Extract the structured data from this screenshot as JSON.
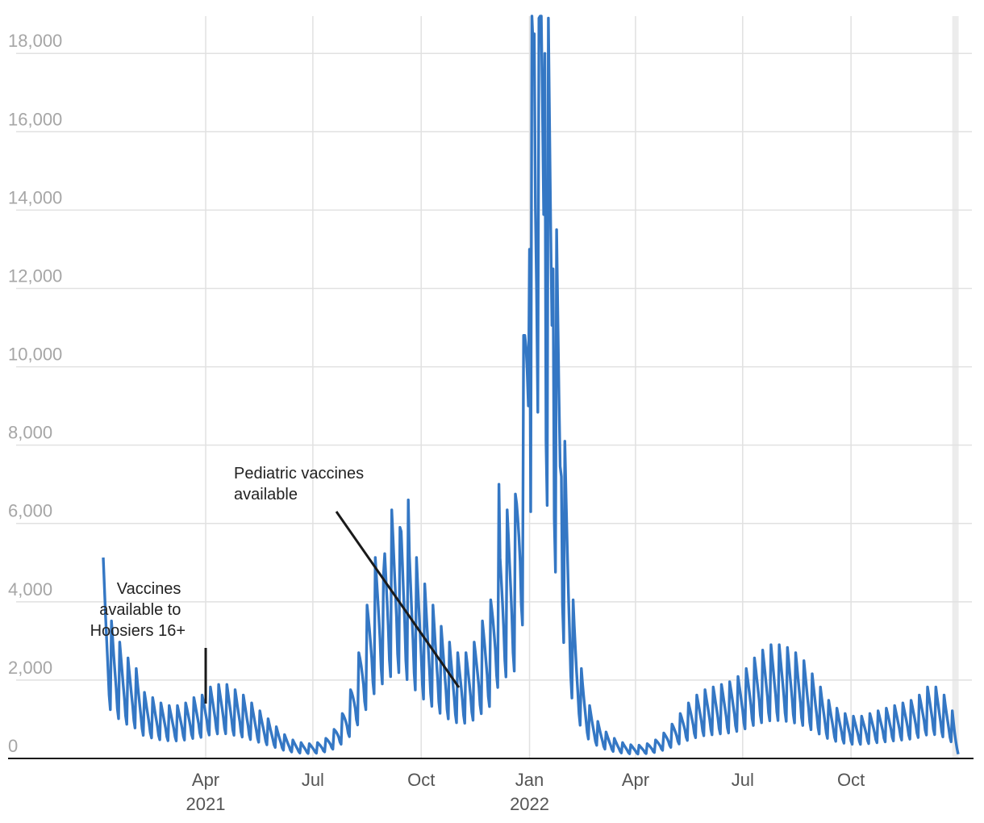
{
  "chart_data": {
    "type": "line",
    "title": "",
    "xlabel": "",
    "ylabel": "",
    "x_range": [
      "2021-01-04",
      "2022-12-31"
    ],
    "ylim": [
      0,
      18500
    ],
    "y_ticks": [
      0,
      2000,
      4000,
      6000,
      8000,
      10000,
      12000,
      14000,
      16000,
      18000
    ],
    "y_tick_labels": [
      "0",
      "2,000",
      "4,000",
      "6,000",
      "8,000",
      "10,000",
      "12,000",
      "14,000",
      "16,000",
      "18,000"
    ],
    "x_ticks": [
      {
        "date": "2021-04-01",
        "label": "Apr",
        "year": "2021"
      },
      {
        "date": "2021-07-01",
        "label": "Jul",
        "year": ""
      },
      {
        "date": "2021-10-01",
        "label": "Oct",
        "year": ""
      },
      {
        "date": "2022-01-01",
        "label": "Jan",
        "year": "2022"
      },
      {
        "date": "2022-04-01",
        "label": "Apr",
        "year": ""
      },
      {
        "date": "2022-07-01",
        "label": "Jul",
        "year": ""
      },
      {
        "date": "2022-10-01",
        "label": "Oct",
        "year": ""
      }
    ],
    "grid": true,
    "highlight_band_date": "2022-12-28",
    "series_color": "#3477c4",
    "series": [
      {
        "points": [
          [
            "2021-01-04",
            3800
          ],
          [
            "2021-01-11",
            2600
          ],
          [
            "2021-01-18",
            2200
          ],
          [
            "2021-01-25",
            1900
          ],
          [
            "2021-02-01",
            1700
          ],
          [
            "2021-02-08",
            1250
          ],
          [
            "2021-02-15",
            1150
          ],
          [
            "2021-02-22",
            1050
          ],
          [
            "2021-03-01",
            1000
          ],
          [
            "2021-03-08",
            1000
          ],
          [
            "2021-03-15",
            1050
          ],
          [
            "2021-03-22",
            1150
          ],
          [
            "2021-03-29",
            1200
          ],
          [
            "2021-04-05",
            1350
          ],
          [
            "2021-04-12",
            1400
          ],
          [
            "2021-04-19",
            1400
          ],
          [
            "2021-04-26",
            1300
          ],
          [
            "2021-05-03",
            1200
          ],
          [
            "2021-05-10",
            1050
          ],
          [
            "2021-05-17",
            900
          ],
          [
            "2021-05-24",
            750
          ],
          [
            "2021-05-31",
            600
          ],
          [
            "2021-06-07",
            450
          ],
          [
            "2021-06-14",
            350
          ],
          [
            "2021-06-21",
            300
          ],
          [
            "2021-06-28",
            280
          ],
          [
            "2021-07-05",
            300
          ],
          [
            "2021-07-12",
            380
          ],
          [
            "2021-07-19",
            550
          ],
          [
            "2021-07-26",
            850
          ],
          [
            "2021-08-02",
            1300
          ],
          [
            "2021-08-09",
            2000
          ],
          [
            "2021-08-16",
            2900
          ],
          [
            "2021-08-23",
            3800
          ],
          [
            "2021-08-30",
            4300
          ],
          [
            "2021-09-06",
            4700
          ],
          [
            "2021-09-13",
            4900
          ],
          [
            "2021-09-20",
            4400
          ],
          [
            "2021-09-27",
            3800
          ],
          [
            "2021-10-04",
            3300
          ],
          [
            "2021-10-11",
            2900
          ],
          [
            "2021-10-18",
            2500
          ],
          [
            "2021-10-25",
            2200
          ],
          [
            "2021-11-01",
            2000
          ],
          [
            "2021-11-08",
            2000
          ],
          [
            "2021-11-15",
            2200
          ],
          [
            "2021-11-22",
            2600
          ],
          [
            "2021-11-29",
            3000
          ],
          [
            "2021-12-06",
            4200
          ],
          [
            "2021-12-13",
            4700
          ],
          [
            "2021-12-20",
            5000
          ],
          [
            "2021-12-27",
            8000
          ],
          [
            "2022-01-03",
            15000
          ],
          [
            "2022-01-10",
            16500
          ],
          [
            "2022-01-17",
            14000
          ],
          [
            "2022-01-24",
            10000
          ],
          [
            "2022-01-31",
            6000
          ],
          [
            "2022-02-07",
            3000
          ],
          [
            "2022-02-14",
            1700
          ],
          [
            "2022-02-21",
            1000
          ],
          [
            "2022-02-28",
            700
          ],
          [
            "2022-03-07",
            500
          ],
          [
            "2022-03-14",
            380
          ],
          [
            "2022-03-21",
            300
          ],
          [
            "2022-03-28",
            260
          ],
          [
            "2022-04-04",
            250
          ],
          [
            "2022-04-11",
            280
          ],
          [
            "2022-04-18",
            350
          ],
          [
            "2022-04-25",
            480
          ],
          [
            "2022-05-02",
            650
          ],
          [
            "2022-05-09",
            850
          ],
          [
            "2022-05-16",
            1050
          ],
          [
            "2022-05-23",
            1200
          ],
          [
            "2022-05-30",
            1300
          ],
          [
            "2022-06-06",
            1350
          ],
          [
            "2022-06-13",
            1400
          ],
          [
            "2022-06-20",
            1450
          ],
          [
            "2022-06-27",
            1550
          ],
          [
            "2022-07-04",
            1700
          ],
          [
            "2022-07-11",
            1900
          ],
          [
            "2022-07-18",
            2050
          ],
          [
            "2022-07-25",
            2150
          ],
          [
            "2022-08-01",
            2150
          ],
          [
            "2022-08-08",
            2100
          ],
          [
            "2022-08-15",
            2000
          ],
          [
            "2022-08-22",
            1850
          ],
          [
            "2022-08-29",
            1600
          ],
          [
            "2022-09-05",
            1350
          ],
          [
            "2022-09-12",
            1100
          ],
          [
            "2022-09-19",
            950
          ],
          [
            "2022-09-26",
            850
          ],
          [
            "2022-10-03",
            800
          ],
          [
            "2022-10-10",
            800
          ],
          [
            "2022-10-17",
            850
          ],
          [
            "2022-10-24",
            900
          ],
          [
            "2022-10-31",
            950
          ],
          [
            "2022-11-07",
            1000
          ],
          [
            "2022-11-14",
            1050
          ],
          [
            "2022-11-21",
            1100
          ],
          [
            "2022-11-28",
            1200
          ],
          [
            "2022-12-05",
            1350
          ],
          [
            "2022-12-12",
            1350
          ],
          [
            "2022-12-19",
            1200
          ],
          [
            "2022-12-26",
            900
          ],
          [
            "2022-12-31",
            200
          ]
        ],
        "spikes": [
          [
            "2022-01-05",
            18500
          ],
          [
            "2022-01-09",
            18900
          ],
          [
            "2022-01-14",
            18000
          ],
          [
            "2022-01-21",
            12500
          ],
          [
            "2022-01-01",
            13000
          ],
          [
            "2022-01-28",
            7200
          ],
          [
            "2021-12-06",
            7000
          ],
          [
            "2021-09-20",
            6600
          ],
          [
            "2021-09-13",
            5900
          ],
          [
            "2021-08-30",
            4700
          ]
        ]
      }
    ],
    "annotations": [
      {
        "text_lines": [
          "Vaccines",
          "available to",
          "Hoosiers 16+"
        ],
        "date": "2021-04-01",
        "align": "end"
      },
      {
        "text_lines": [
          "Pediatric vaccines",
          "available"
        ],
        "date": "2021-11-02",
        "align": "start"
      }
    ]
  }
}
